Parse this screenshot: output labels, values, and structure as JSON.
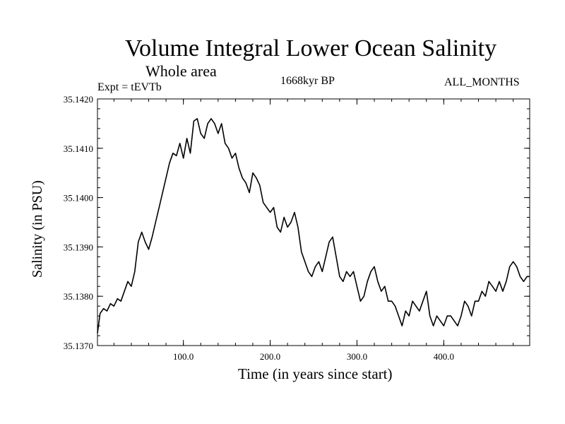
{
  "header": {
    "title": "Volume Integral Lower Ocean Salinity",
    "subtitle": "Whole area",
    "experiment": "Expt = tEVTb",
    "period": "1668kyr BP",
    "months": "ALL_MONTHS"
  },
  "chart_data": {
    "type": "line",
    "title": "Volume Integral Lower Ocean Salinity",
    "subtitle": "Whole area",
    "xlabel": "Time (in years since start)",
    "ylabel": "Salinity (in PSU)",
    "xlim": [
      1,
      499
    ],
    "ylim": [
      35.137,
      35.142
    ],
    "xticks": [
      100,
      200,
      300,
      400
    ],
    "xtick_labels": [
      "100.0",
      "200.0",
      "300.0",
      "400.0"
    ],
    "yticks": [
      35.137,
      35.138,
      35.139,
      35.14,
      35.141,
      35.142
    ],
    "ytick_labels": [
      "35.1370",
      "35.1380",
      "35.1390",
      "35.1400",
      "35.1410",
      "35.1420"
    ],
    "grid": false,
    "series": [
      {
        "name": "Salinity",
        "x": [
          1,
          4,
          8,
          12,
          16,
          20,
          24,
          28,
          32,
          36,
          40,
          44,
          48,
          52,
          56,
          60,
          64,
          68,
          72,
          76,
          80,
          84,
          88,
          92,
          96,
          100,
          104,
          108,
          112,
          116,
          120,
          124,
          128,
          132,
          136,
          140,
          144,
          148,
          152,
          156,
          160,
          164,
          168,
          172,
          176,
          180,
          184,
          188,
          192,
          196,
          200,
          204,
          208,
          212,
          216,
          220,
          224,
          228,
          232,
          236,
          240,
          244,
          248,
          252,
          256,
          260,
          264,
          268,
          272,
          276,
          280,
          284,
          288,
          292,
          296,
          300,
          304,
          308,
          312,
          316,
          320,
          324,
          328,
          332,
          336,
          340,
          344,
          348,
          352,
          356,
          360,
          364,
          368,
          372,
          376,
          380,
          384,
          388,
          392,
          396,
          400,
          404,
          408,
          412,
          416,
          420,
          424,
          428,
          432,
          436,
          440,
          444,
          448,
          452,
          456,
          460,
          464,
          468,
          472,
          476,
          480,
          484,
          488,
          492,
          496,
          499
        ],
        "values": [
          35.13725,
          35.13765,
          35.13775,
          35.1377,
          35.13785,
          35.1378,
          35.13795,
          35.1379,
          35.1381,
          35.1383,
          35.1382,
          35.1385,
          35.1391,
          35.1393,
          35.1391,
          35.13895,
          35.1392,
          35.1395,
          35.1398,
          35.1401,
          35.1404,
          35.1407,
          35.1409,
          35.14085,
          35.1411,
          35.1408,
          35.1412,
          35.1409,
          35.14155,
          35.1416,
          35.1413,
          35.1412,
          35.1415,
          35.1416,
          35.1415,
          35.1413,
          35.1415,
          35.1411,
          35.141,
          35.1408,
          35.1409,
          35.1406,
          35.1404,
          35.1403,
          35.1401,
          35.1405,
          35.1404,
          35.14025,
          35.1399,
          35.1398,
          35.1397,
          35.1398,
          35.1394,
          35.1393,
          35.1396,
          35.1394,
          35.1395,
          35.1397,
          35.1394,
          35.1389,
          35.1387,
          35.1385,
          35.1384,
          35.1386,
          35.1387,
          35.1385,
          35.1388,
          35.1391,
          35.1392,
          35.1388,
          35.1384,
          35.1383,
          35.1385,
          35.1384,
          35.1385,
          35.1382,
          35.1379,
          35.138,
          35.1383,
          35.1385,
          35.1386,
          35.1383,
          35.1381,
          35.1382,
          35.1379,
          35.1379,
          35.1378,
          35.1376,
          35.1374,
          35.1377,
          35.1376,
          35.1379,
          35.1378,
          35.1377,
          35.1379,
          35.1381,
          35.1376,
          35.1374,
          35.1376,
          35.1375,
          35.1374,
          35.1376,
          35.1376,
          35.1375,
          35.1374,
          35.1376,
          35.1379,
          35.1378,
          35.1376,
          35.1379,
          35.1379,
          35.1381,
          35.138,
          35.1383,
          35.1382,
          35.1381,
          35.1383,
          35.1381,
          35.1383,
          35.1386,
          35.1387,
          35.1386,
          35.1384,
          35.1383,
          35.1384,
          35.1384
        ]
      }
    ]
  }
}
